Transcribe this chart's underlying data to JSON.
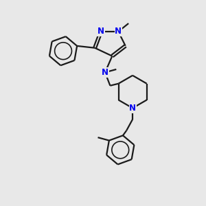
{
  "bg_color": "#e8e8e8",
  "bond_color": "#1a1a1a",
  "n_color": "#0000ee",
  "line_width": 1.6,
  "font_size": 8.5,
  "figsize": [
    3.0,
    3.0
  ],
  "dpi": 100,
  "xlim": [
    0,
    10
  ],
  "ylim": [
    0,
    10
  ]
}
